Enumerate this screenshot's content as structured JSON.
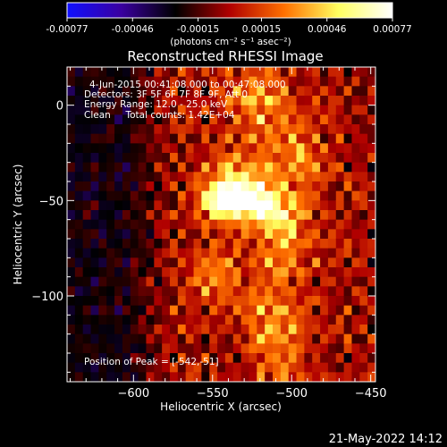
{
  "chart_data": {
    "type": "heatmap",
    "title": "Reconstructed RHESSI Image",
    "xlabel": "Heliocentric X (arcsec)",
    "ylabel": "Heliocentric Y (arcsec)",
    "xlim": [
      -642,
      -447
    ],
    "ylim": [
      -145,
      20
    ],
    "x_ticks": [
      -600,
      -550,
      -500,
      -450
    ],
    "x_tick_labels": [
      "−600",
      "−550",
      "−500",
      "−450"
    ],
    "y_ticks": [
      0,
      -50,
      -100
    ],
    "y_tick_labels": [
      "0",
      "−50",
      "−100"
    ],
    "colorbar": {
      "min": -0.00077,
      "max": 0.00077,
      "ticks": [
        -0.00077,
        -0.00046,
        -0.00015,
        0.00015,
        0.00046,
        0.00077
      ],
      "tick_labels": [
        "-0.00077",
        "-0.00046",
        "-0.00015",
        "0.00015",
        "0.00046",
        "0.00077"
      ],
      "unit_label": "(photons cm⁻² s⁻¹ asec⁻²)",
      "colormap": [
        "#1010ff",
        "#3a00a0",
        "#000000",
        "#b00000",
        "#ff7000",
        "#ffff60",
        "#ffffff"
      ]
    },
    "annotations": [
      "4-Jun-2015 00:41:08.000 to 00:47:08.000",
      "Detectors: 3F 5F 6F 7F 8F 9F, Att 0",
      "Energy Range: 12.0 - 25.0 keV",
      "Clean     Total counts: 1.42E+04"
    ],
    "peak_label": "Position of Peak = [-542,-51]",
    "peak": [
      -542,
      -51
    ],
    "sources": [
      {
        "x": -542,
        "y": -51,
        "sx": 10,
        "sy": 7,
        "amp": 0.00077
      },
      {
        "x": -520,
        "y": -52,
        "sx": 8,
        "sy": 6,
        "amp": 0.00062
      },
      {
        "x": -532,
        "y": -40,
        "sx": 14,
        "sy": 10,
        "amp": 0.00045
      },
      {
        "x": -505,
        "y": -65,
        "sx": 12,
        "sy": 16,
        "amp": 0.0004
      },
      {
        "x": -520,
        "y": 0,
        "sx": 14,
        "sy": 15,
        "amp": 0.00034
      },
      {
        "x": -510,
        "y": -118,
        "sx": 12,
        "sy": 18,
        "amp": 0.00034
      },
      {
        "x": -548,
        "y": -92,
        "sx": 10,
        "sy": 12,
        "amp": 0.0003
      },
      {
        "x": -495,
        "y": -25,
        "sx": 10,
        "sy": 10,
        "amp": 0.00028
      }
    ],
    "negative_region": {
      "x_max": -575,
      "amp": -0.00025
    }
  },
  "footer": {
    "date": "21-May-2022 14:12"
  }
}
